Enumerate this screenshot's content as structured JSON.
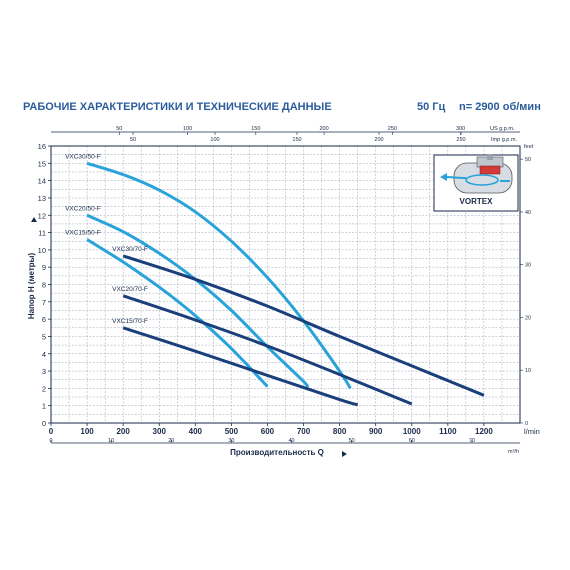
{
  "header": {
    "title": "РАБОЧИЕ ХАРАКТЕРИСТИКИ И ТЕХНИЧЕСКИЕ ДАННЫЕ",
    "frequency": "50 Гц",
    "speed": "n= 2900 об/мин"
  },
  "inset": {
    "label": "VORTEX",
    "icon": "vortex-pump-icon"
  },
  "colors": {
    "axis": "#1a2a4a",
    "grid": "#9aa5b5",
    "curve_dark": "#1a3f7a",
    "curve_light": "#29a3d9",
    "accent": "#2b5c9c"
  },
  "chart_data": {
    "type": "line",
    "xlabel": "Производительность Q",
    "ylabel": "Напор H (метры)",
    "x_unit": "l/min",
    "xlim": [
      0,
      1300
    ],
    "ylim": [
      0,
      16
    ],
    "x_ticks": [
      "0",
      "100",
      "200",
      "300",
      "400",
      "500",
      "600",
      "700",
      "800",
      "900",
      "1000",
      "1100",
      "1200"
    ],
    "y_ticks": [
      "0",
      "1",
      "2",
      "3",
      "4",
      "5",
      "6",
      "7",
      "8",
      "9",
      "10",
      "11",
      "12",
      "13",
      "14",
      "15",
      "16"
    ],
    "secondary_axes": [
      {
        "position": "bottom",
        "unit": "m³/h",
        "ticks": [
          "0",
          "10",
          "20",
          "30",
          "40",
          "50",
          "60",
          "70"
        ],
        "lpm_per_unit": 16.667
      },
      {
        "position": "top",
        "unit": "US g.p.m.",
        "ticks": [
          "50",
          "100",
          "150",
          "200",
          "250",
          "300"
        ],
        "lpm_per_unit": 3.785
      },
      {
        "position": "top-minor",
        "unit": "Imp g.p.m.",
        "ticks": [
          "50",
          "100",
          "150",
          "200",
          "250"
        ],
        "lpm_per_unit": 4.546
      },
      {
        "position": "right",
        "unit": "feet",
        "ticks": [
          "0",
          "10",
          "20",
          "30",
          "40",
          "50"
        ],
        "m_per_unit": 0.3048
      }
    ],
    "grid": true,
    "series": [
      {
        "name": "VXC30/50-F",
        "style": "light",
        "points": [
          [
            100,
            15.0
          ],
          [
            200,
            14.35
          ],
          [
            300,
            13.45
          ],
          [
            400,
            12.2
          ],
          [
            500,
            10.5
          ],
          [
            600,
            8.4
          ],
          [
            700,
            5.9
          ],
          [
            800,
            3.0
          ],
          [
            830,
            2.0
          ]
        ]
      },
      {
        "name": "VXC20/50-F",
        "style": "light",
        "points": [
          [
            100,
            12.0
          ],
          [
            200,
            11.05
          ],
          [
            300,
            9.8
          ],
          [
            400,
            8.3
          ],
          [
            500,
            6.5
          ],
          [
            600,
            4.4
          ],
          [
            700,
            2.4
          ],
          [
            710,
            2.05
          ]
        ]
      },
      {
        "name": "VXC15/50-F",
        "style": "light",
        "points": [
          [
            100,
            10.6
          ],
          [
            200,
            9.3
          ],
          [
            300,
            7.85
          ],
          [
            400,
            6.2
          ],
          [
            500,
            4.3
          ],
          [
            600,
            2.1
          ]
        ]
      },
      {
        "name": "VXC30/70-F",
        "style": "dark",
        "points": [
          [
            200,
            9.65
          ],
          [
            400,
            8.3
          ],
          [
            600,
            6.75
          ],
          [
            800,
            5.0
          ],
          [
            1000,
            3.3
          ],
          [
            1200,
            1.6
          ]
        ]
      },
      {
        "name": "VXC20/70-F",
        "style": "dark",
        "points": [
          [
            200,
            7.35
          ],
          [
            400,
            5.95
          ],
          [
            600,
            4.45
          ],
          [
            800,
            2.8
          ],
          [
            1000,
            1.1
          ]
        ]
      },
      {
        "name": "VXC15/70-F",
        "style": "dark",
        "points": [
          [
            200,
            5.5
          ],
          [
            400,
            4.15
          ],
          [
            600,
            2.75
          ],
          [
            800,
            1.35
          ],
          [
            850,
            1.05
          ]
        ]
      }
    ]
  }
}
